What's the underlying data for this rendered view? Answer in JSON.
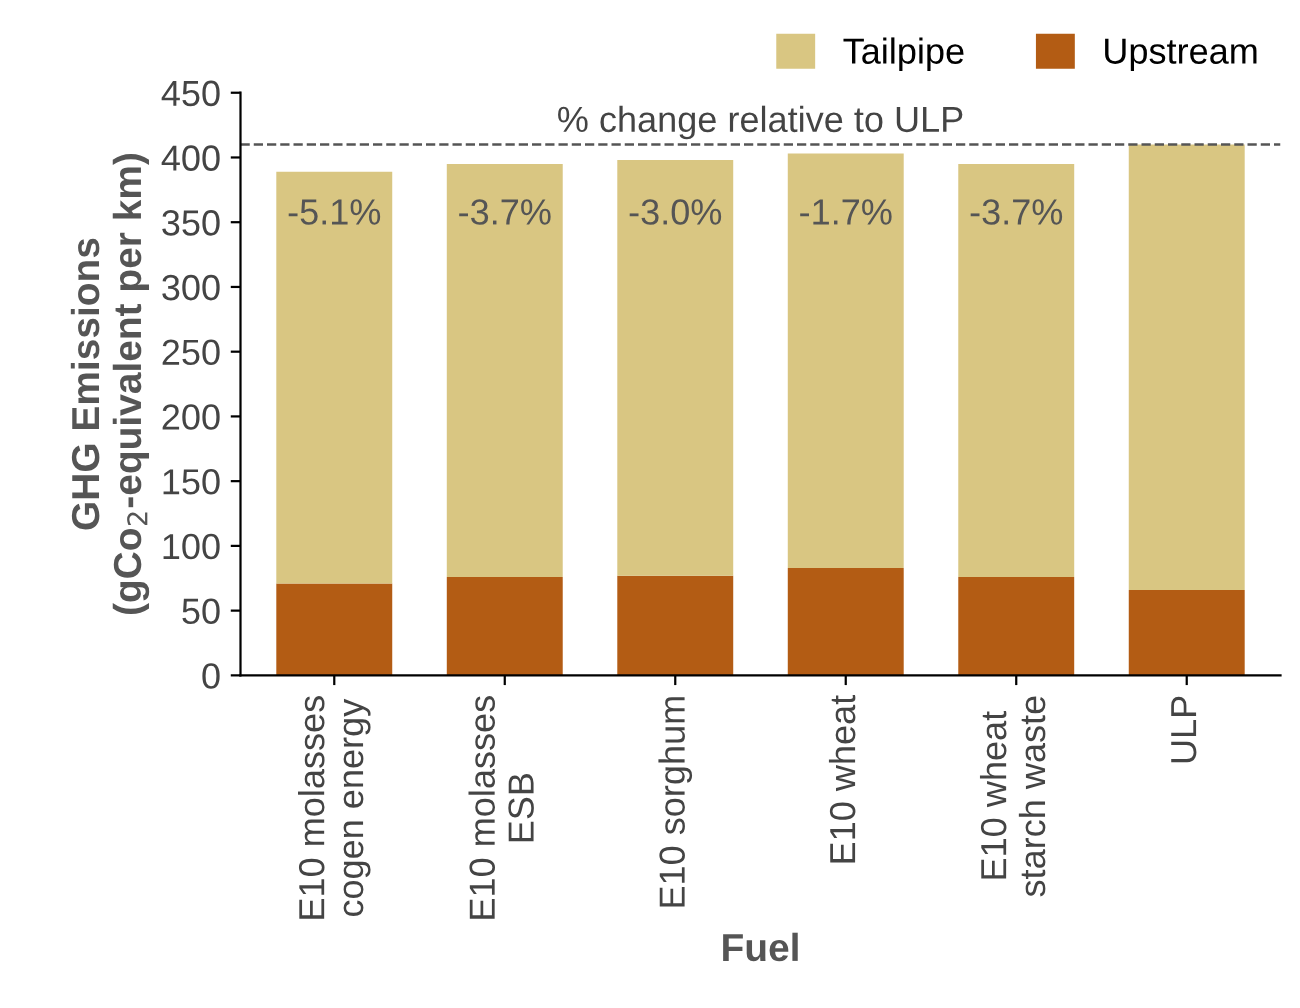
{
  "chart_data": {
    "type": "bar",
    "stacked": true,
    "xlabel": "Fuel",
    "ylabel": "GHG Emissions\n(gCo$_{2}$-equivalent per km)",
    "categories": [
      "E10 molasses\ncogen energy",
      "E10 molasses\nESB",
      "E10 sorghum",
      "E10 wheat",
      "E10 wheat\nstarch waste",
      "ULP"
    ],
    "series": [
      {
        "name": "Upstream",
        "color": "#b35c14",
        "values": [
          71,
          76,
          77,
          83,
          76,
          66
        ]
      },
      {
        "name": "Tailpipe",
        "color": "#d9c682",
        "values": [
          318,
          319,
          321,
          320,
          319,
          344
        ]
      }
    ],
    "ylim": [
      0,
      450
    ],
    "yticks": [
      0,
      50,
      100,
      150,
      200,
      250,
      300,
      350,
      400,
      450
    ],
    "ref_lines": [
      {
        "axis": "y",
        "value": 410,
        "label": "% change relative to ULP",
        "line_style": "dashed",
        "color": "#555555"
      }
    ],
    "annotations": [
      "-5.1%",
      "-3.7%",
      "-3.0%",
      "-1.7%",
      "-3.7%"
    ],
    "legend": "top right",
    "grid": false
  }
}
